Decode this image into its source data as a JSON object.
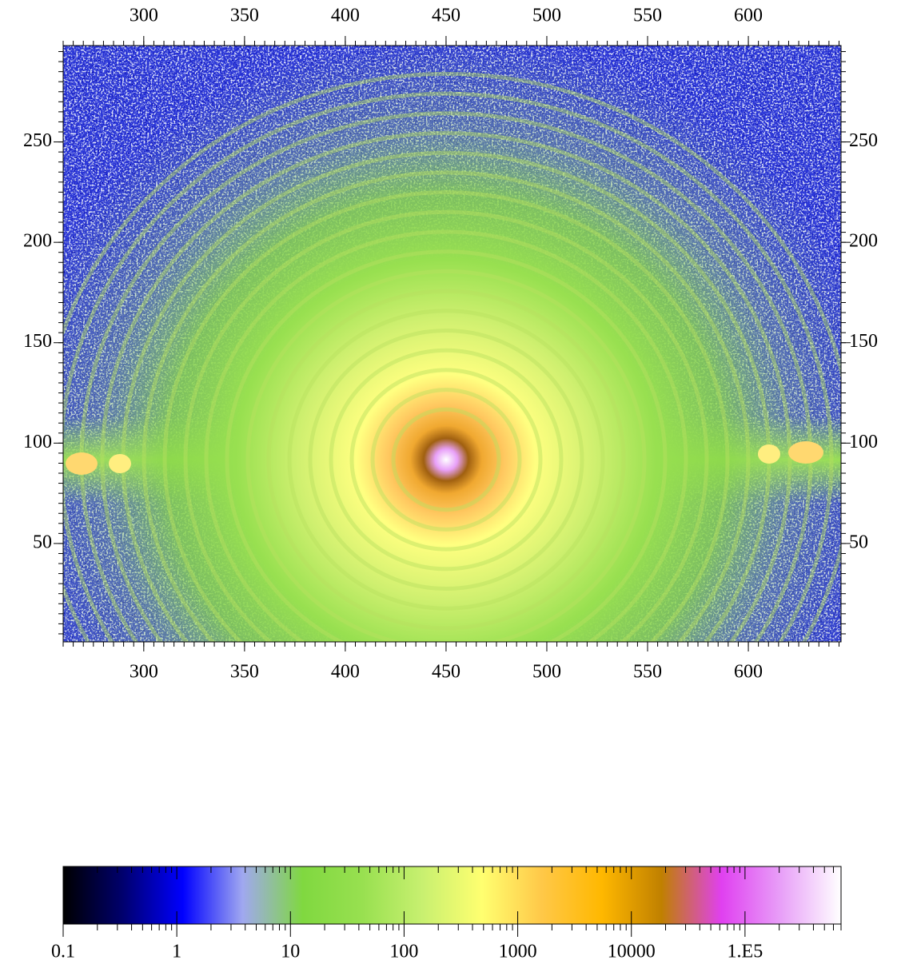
{
  "chart_data": {
    "type": "heatmap",
    "xlim": [
      260,
      646
    ],
    "ylim": [
      1,
      298
    ],
    "xticks": [
      300,
      350,
      400,
      450,
      500,
      550,
      600
    ],
    "yticks": [
      50,
      100,
      150,
      200,
      250
    ],
    "colorbar": {
      "lim": [
        0.1,
        700000
      ],
      "log": true,
      "ticks": [
        0.1,
        1,
        10,
        100,
        1000,
        10000,
        {
          "value": 100000,
          "label": "1.E5"
        }
      ],
      "colors": [
        "#000000",
        "#00006e",
        "#0000ff",
        "#a0a8f0",
        "#80d840",
        "#98e050",
        "#c8f070",
        "#ffff70",
        "#ffc848",
        "#ffb800",
        "#c08000",
        "#e040f0",
        "#e8a0f8",
        "#ffffff"
      ]
    }
  }
}
